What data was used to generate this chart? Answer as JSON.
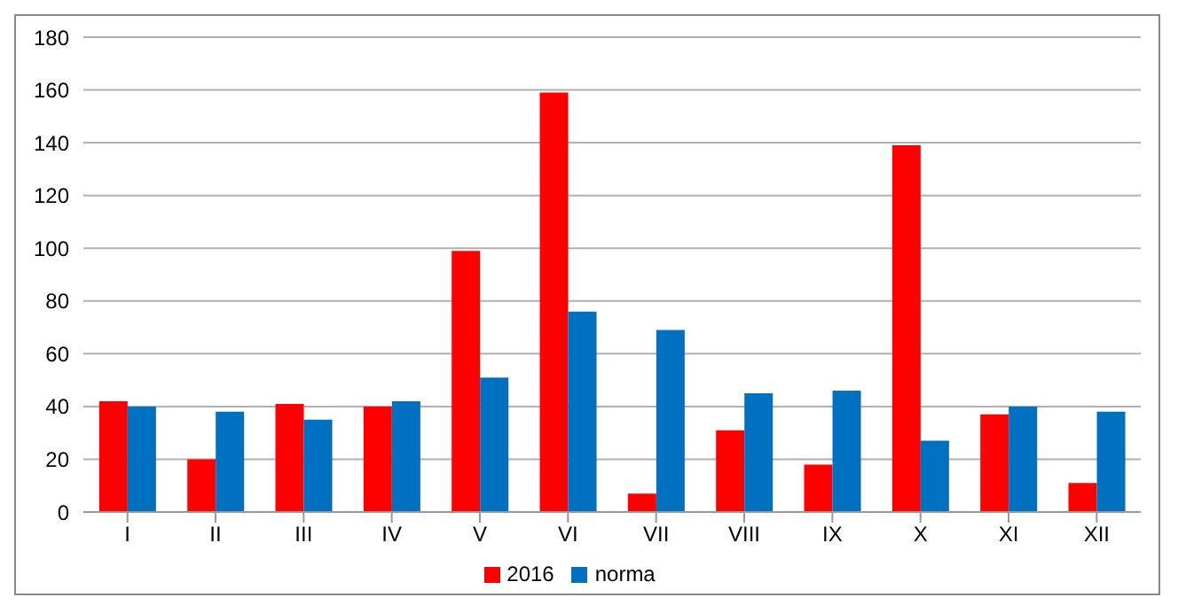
{
  "chart_data": {
    "type": "bar",
    "categories": [
      "I",
      "II",
      "III",
      "IV",
      "V",
      "VI",
      "VII",
      "VIII",
      "IX",
      "X",
      "XI",
      "XII"
    ],
    "series": [
      {
        "name": "2016",
        "color": "#ff0000",
        "values": [
          42,
          20,
          41,
          40,
          99,
          159,
          7,
          31,
          18,
          139,
          37,
          11
        ]
      },
      {
        "name": "norma",
        "color": "#0070c0",
        "values": [
          40,
          38,
          35,
          42,
          51,
          76,
          69,
          45,
          46,
          27,
          40,
          38
        ]
      }
    ],
    "ylim": [
      0,
      180
    ],
    "yticks": [
      0,
      20,
      40,
      60,
      80,
      100,
      120,
      140,
      160,
      180
    ],
    "grid": "y",
    "legend": "bottom"
  }
}
